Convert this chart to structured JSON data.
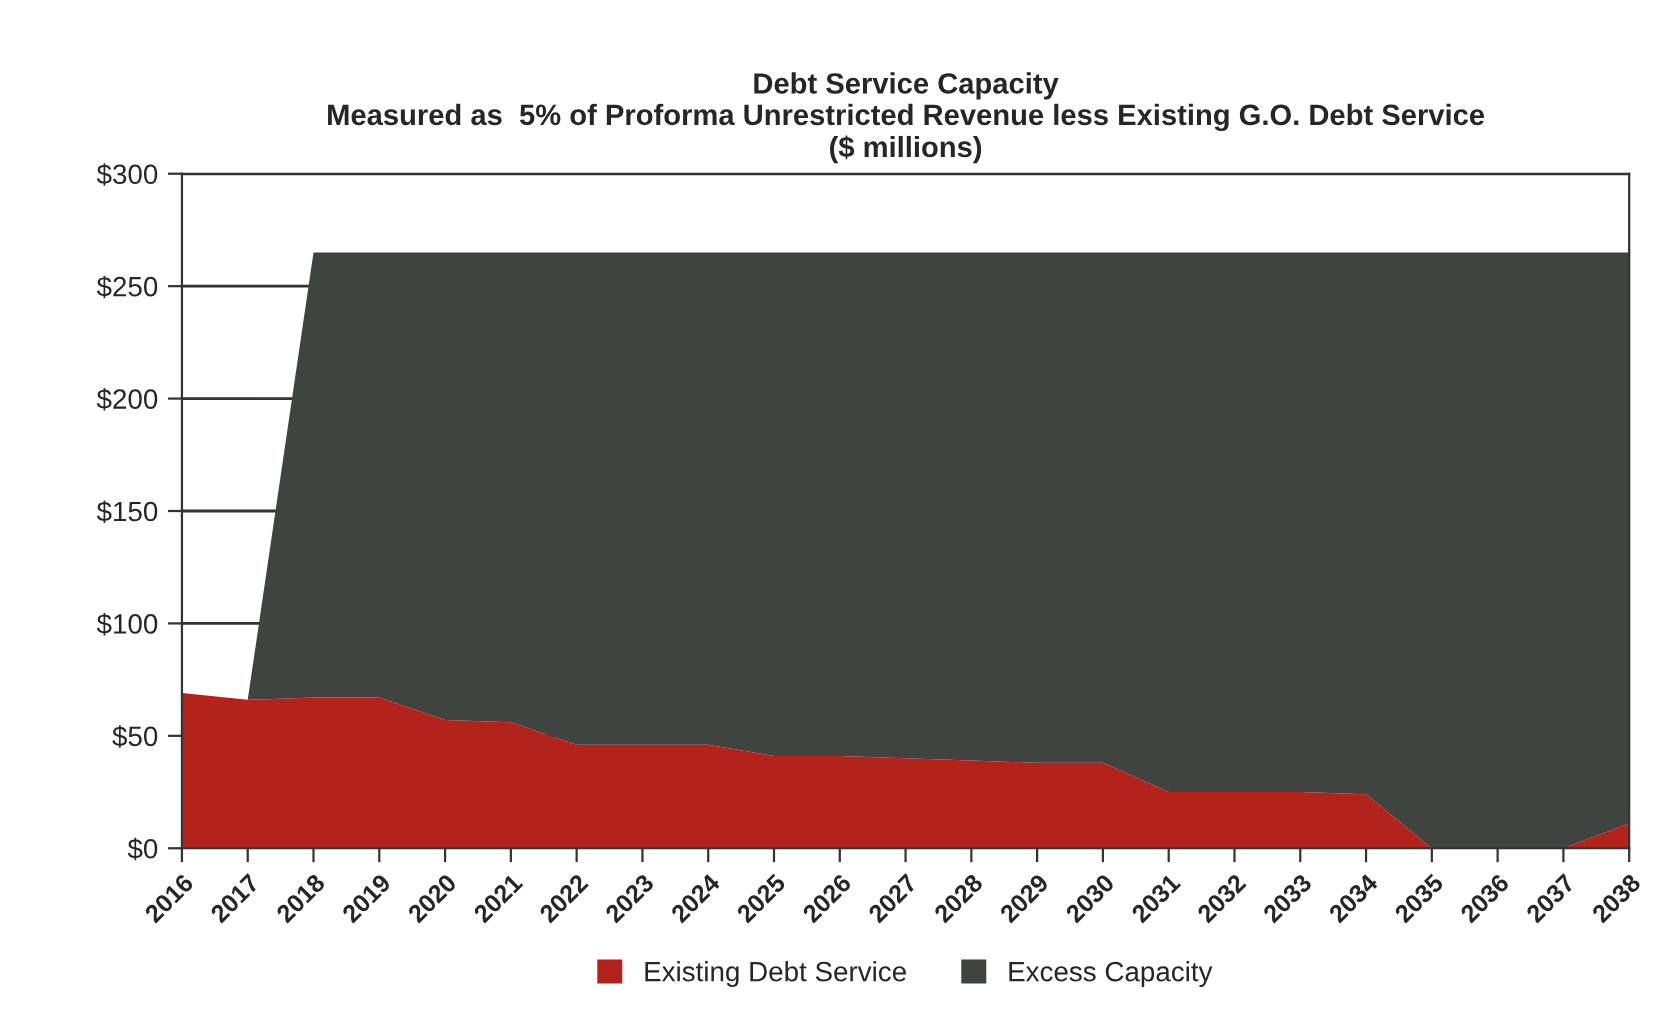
{
  "chart_data": {
    "type": "area",
    "title": "Debt Service Capacity",
    "subtitle": "Measured as  5% of Proforma Unrestricted Revenue less Existing G.O. Debt Service\n($ millions)",
    "categories": [
      "2016",
      "2017",
      "2018",
      "2019",
      "2020",
      "2021",
      "2022",
      "2023",
      "2024",
      "2025",
      "2026",
      "2027",
      "2028",
      "2029",
      "2030",
      "2031",
      "2032",
      "2033",
      "2034",
      "2035",
      "2036",
      "2037",
      "2038"
    ],
    "stacked": true,
    "series": [
      {
        "name": "Existing Debt Service",
        "color": "#b2231c",
        "values": [
          69,
          66,
          67,
          67,
          57,
          56,
          46,
          46,
          46,
          41,
          41,
          40,
          39,
          38,
          38,
          25,
          25,
          25,
          24,
          0,
          0,
          0,
          11
        ]
      },
      {
        "name": "Excess Capacity",
        "color": "#3f4440",
        "values": [
          0,
          0,
          198,
          198,
          208,
          209,
          219,
          219,
          219,
          224,
          224,
          225,
          226,
          227,
          227,
          240,
          240,
          240,
          241,
          265,
          265,
          265,
          254
        ]
      }
    ],
    "ylim": [
      0,
      300
    ],
    "yticks": [
      {
        "value": 0,
        "label": "$0"
      },
      {
        "value": 50,
        "label": "$50"
      },
      {
        "value": 100,
        "label": "$100"
      },
      {
        "value": 150,
        "label": "$150"
      },
      {
        "value": 200,
        "label": "$200"
      },
      {
        "value": 250,
        "label": "$250"
      },
      {
        "value": 300,
        "label": "$300"
      }
    ],
    "grid": "y",
    "legend": "bottom"
  }
}
